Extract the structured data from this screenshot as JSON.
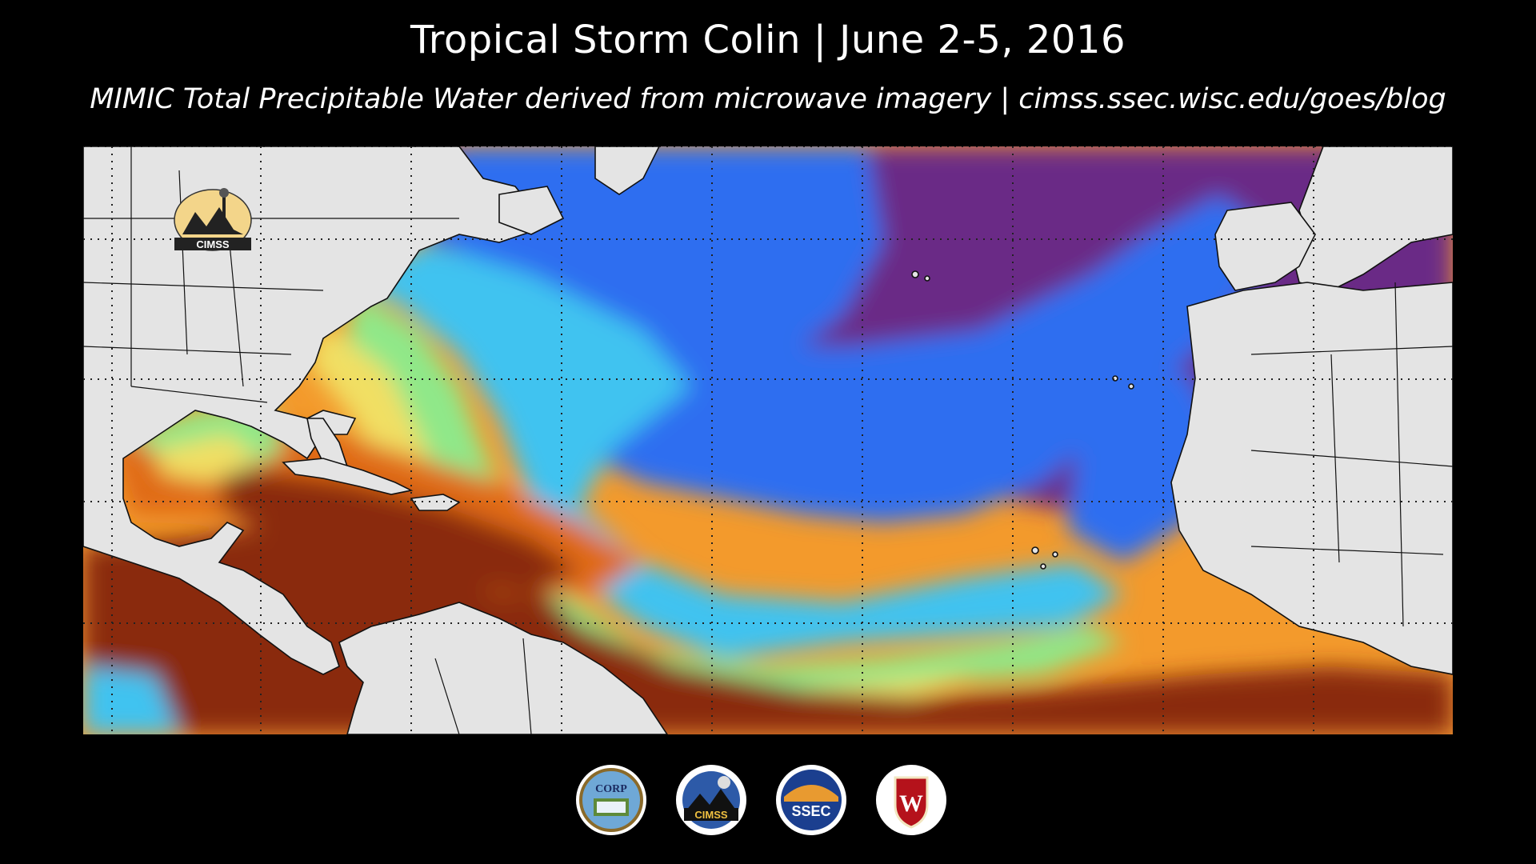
{
  "header": {
    "title": "Tropical Storm Colin | June 2-5, 2016",
    "subtitle": "MIMIC Total Precipitable Water derived from microwave imagery | cimss.ssec.wisc.edu/goes/blog"
  },
  "map": {
    "watermark_text": "CIMSS",
    "colors": {
      "land": "#e4e4e4",
      "very_moist": "#8a2b0c",
      "moist": "#e06a12",
      "orange": "#f39a2c",
      "yellow": "#f1df63",
      "green": "#8fe889",
      "cyan": "#3fc3f0",
      "blue": "#2e6ef0",
      "purple": "#6b2a86",
      "dark_purple": "#4a1e6a"
    }
  },
  "logos": [
    {
      "name": "corp-logo",
      "text": "CORP"
    },
    {
      "name": "cimss-logo",
      "text": "CIMSS"
    },
    {
      "name": "ssec-logo",
      "text": "SSEC"
    },
    {
      "name": "uw-logo",
      "text": "W"
    }
  ]
}
